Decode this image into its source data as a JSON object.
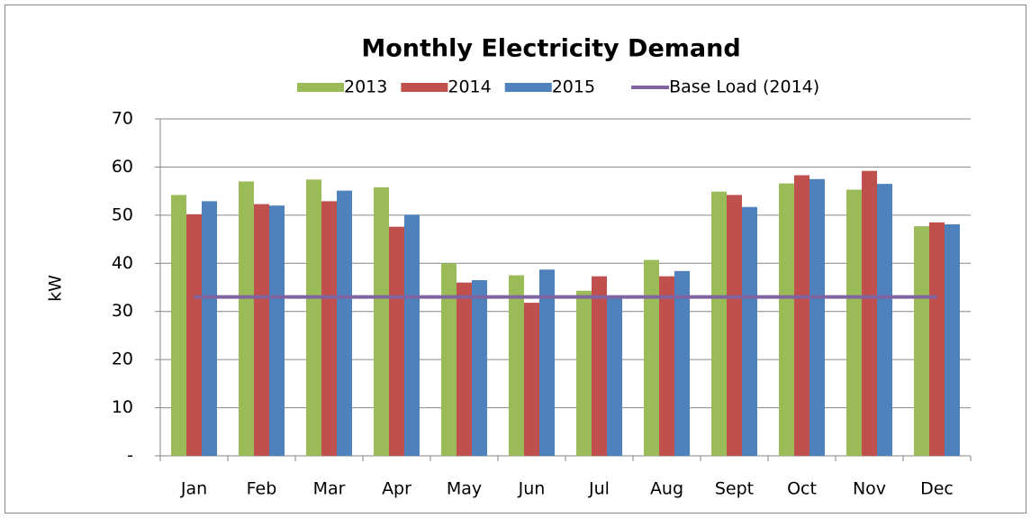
{
  "chart_data": {
    "type": "bar",
    "title": "Monthly Electricity Demand",
    "y_label": "kW",
    "categories": [
      "Jan",
      "Feb",
      "Mar",
      "Apr",
      "May",
      "Jun",
      "Jul",
      "Aug",
      "Sept",
      "Oct",
      "Nov",
      "Dec"
    ],
    "series": [
      {
        "name": "2013",
        "color": "#9bbb59",
        "type": "bar",
        "values": [
          54.2,
          57,
          57.4,
          55.8,
          40,
          37.5,
          34.3,
          40.7,
          54.9,
          56.6,
          55.3,
          47.7
        ]
      },
      {
        "name": "2014",
        "color": "#c0504d",
        "type": "bar",
        "values": [
          50.2,
          52.3,
          52.9,
          47.6,
          36,
          31.8,
          37.3,
          37.3,
          54.2,
          58.3,
          59.2,
          48.5
        ]
      },
      {
        "name": "2015",
        "color": "#4f81bd",
        "type": "bar",
        "values": [
          52.9,
          52,
          55.1,
          50.1,
          36.5,
          38.7,
          33.3,
          38.4,
          51.7,
          57.5,
          56.5,
          48.1
        ]
      },
      {
        "name": "Base Load (2014)",
        "color": "#8064a2",
        "type": "line",
        "values": [
          33,
          33,
          33,
          33,
          33,
          33,
          33,
          33,
          33,
          33,
          33,
          33
        ]
      }
    ],
    "ylim": [
      0,
      70
    ],
    "yticks": [
      {
        "value": 0,
        "label": "-"
      },
      10,
      20,
      30,
      40,
      50,
      60,
      70
    ],
    "grid": true,
    "legend": "top"
  }
}
